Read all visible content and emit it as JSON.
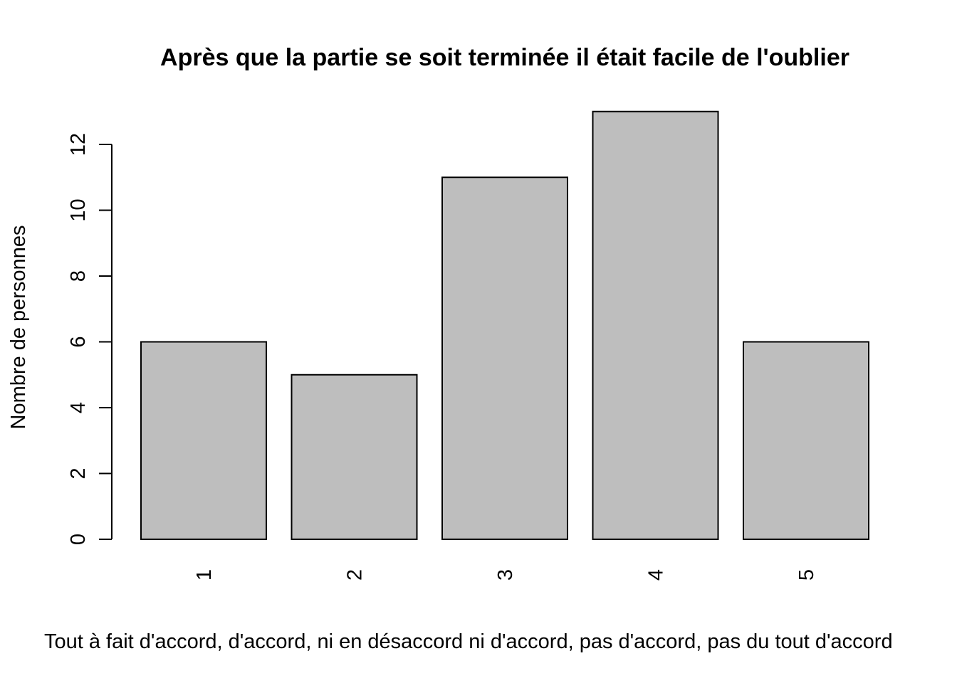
{
  "chart_data": {
    "type": "bar",
    "title": "Après que la partie se soit terminée il était facile de l'oublier",
    "xlabel": "Tout à fait d'accord, d'accord, ni en désaccord ni d'accord, pas d'accord, pas du tout d'accord",
    "ylabel": "Nombre de personnes",
    "categories": [
      "1",
      "2",
      "3",
      "4",
      "5"
    ],
    "values": [
      6,
      5,
      11,
      13,
      6
    ],
    "yticks": [
      0,
      2,
      4,
      6,
      8,
      10,
      12
    ],
    "ylim": [
      0,
      13
    ],
    "bar_color": "#bebebe",
    "grid": false,
    "legend": "none"
  }
}
